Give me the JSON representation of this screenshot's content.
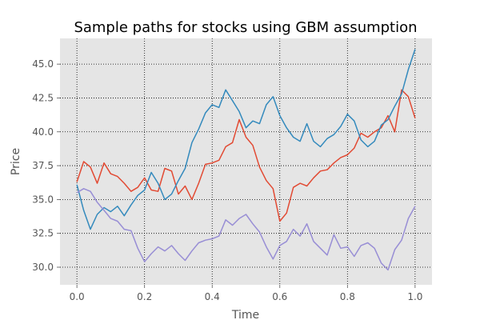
{
  "chart_data": {
    "type": "line",
    "title": "Sample paths for stocks using GBM assumption",
    "xlabel": "Time",
    "ylabel": "Price",
    "xlim": [
      -0.05,
      1.05
    ],
    "ylim": [
      28.7,
      46.9
    ],
    "grid": true,
    "x_ticks": [
      0.0,
      0.2,
      0.4,
      0.6,
      0.8,
      1.0
    ],
    "x_tick_labels": [
      "0.0",
      "0.2",
      "0.4",
      "0.6",
      "0.8",
      "1.0"
    ],
    "y_ticks": [
      30.0,
      32.5,
      35.0,
      37.5,
      40.0,
      42.5,
      45.0
    ],
    "y_tick_labels": [
      "30.0",
      "32.5",
      "35.0",
      "37.5",
      "40.0",
      "42.5",
      "45.0"
    ],
    "background": "#e5e5e5",
    "series": [
      {
        "color": "#e24a33",
        "x": [
          0.0,
          0.02,
          0.04,
          0.06,
          0.08,
          0.1,
          0.12,
          0.14,
          0.16,
          0.18,
          0.2,
          0.22,
          0.24,
          0.26,
          0.28,
          0.3,
          0.32,
          0.34,
          0.36,
          0.38,
          0.4,
          0.42,
          0.44,
          0.46,
          0.48,
          0.5,
          0.52,
          0.54,
          0.56,
          0.58,
          0.6,
          0.62,
          0.64,
          0.66,
          0.68,
          0.7,
          0.72,
          0.74,
          0.76,
          0.78,
          0.8,
          0.82,
          0.84,
          0.86,
          0.88,
          0.9,
          0.92,
          0.94,
          0.96,
          0.98,
          1.0
        ],
        "values": [
          36.3,
          37.8,
          37.4,
          36.2,
          37.7,
          36.9,
          36.7,
          36.2,
          35.6,
          35.9,
          36.6,
          35.7,
          35.6,
          37.3,
          37.1,
          35.4,
          36.0,
          35.0,
          36.2,
          37.6,
          37.7,
          37.9,
          38.9,
          39.2,
          40.9,
          39.6,
          39.0,
          37.4,
          36.4,
          35.8,
          33.4,
          34.0,
          35.9,
          36.2,
          36.0,
          36.6,
          37.1,
          37.2,
          37.7,
          38.1,
          38.3,
          38.8,
          39.9,
          39.6,
          40.0,
          40.3,
          41.2,
          40.0,
          43.1,
          42.6,
          41.0
        ]
      },
      {
        "color": "#348abd",
        "x": [
          0.0,
          0.02,
          0.04,
          0.06,
          0.08,
          0.1,
          0.12,
          0.14,
          0.16,
          0.18,
          0.2,
          0.22,
          0.24,
          0.26,
          0.28,
          0.3,
          0.32,
          0.34,
          0.36,
          0.38,
          0.4,
          0.42,
          0.44,
          0.46,
          0.48,
          0.5,
          0.52,
          0.54,
          0.56,
          0.58,
          0.6,
          0.62,
          0.64,
          0.66,
          0.68,
          0.7,
          0.72,
          0.74,
          0.76,
          0.78,
          0.8,
          0.82,
          0.84,
          0.86,
          0.88,
          0.9,
          0.92,
          0.94,
          0.96,
          0.98,
          1.0
        ],
        "values": [
          36.1,
          34.2,
          32.8,
          33.9,
          34.4,
          34.1,
          34.5,
          33.8,
          34.6,
          35.3,
          35.7,
          37.0,
          36.2,
          35.0,
          35.4,
          36.4,
          37.3,
          39.2,
          40.2,
          41.4,
          42.0,
          41.8,
          43.1,
          42.3,
          41.5,
          40.3,
          40.8,
          40.6,
          42.0,
          42.6,
          41.2,
          40.3,
          39.6,
          39.3,
          40.6,
          39.3,
          38.9,
          39.5,
          39.8,
          40.4,
          41.3,
          40.8,
          39.4,
          38.9,
          39.3,
          40.5,
          40.9,
          41.9,
          42.8,
          44.6,
          46.1
        ]
      },
      {
        "color": "#988ed5",
        "x": [
          0.0,
          0.02,
          0.04,
          0.06,
          0.08,
          0.1,
          0.12,
          0.14,
          0.16,
          0.18,
          0.2,
          0.22,
          0.24,
          0.26,
          0.28,
          0.3,
          0.32,
          0.34,
          0.36,
          0.38,
          0.4,
          0.42,
          0.44,
          0.46,
          0.48,
          0.5,
          0.52,
          0.54,
          0.56,
          0.58,
          0.6,
          0.62,
          0.64,
          0.66,
          0.68,
          0.7,
          0.72,
          0.74,
          0.76,
          0.78,
          0.8,
          0.82,
          0.84,
          0.86,
          0.88,
          0.9,
          0.92,
          0.94,
          0.96,
          0.98,
          1.0
        ],
        "values": [
          35.5,
          35.8,
          35.6,
          34.8,
          34.2,
          33.6,
          33.4,
          32.8,
          32.7,
          31.4,
          30.4,
          31.0,
          31.5,
          31.2,
          31.6,
          31.0,
          30.5,
          31.2,
          31.8,
          32.0,
          32.1,
          32.3,
          33.5,
          33.1,
          33.6,
          33.9,
          33.2,
          32.6,
          31.5,
          30.6,
          31.6,
          31.9,
          32.8,
          32.3,
          33.2,
          31.9,
          31.4,
          30.9,
          32.4,
          31.4,
          31.5,
          30.8,
          31.6,
          31.8,
          31.4,
          30.3,
          29.8,
          31.3,
          32.0,
          33.6,
          34.5
        ]
      }
    ]
  }
}
